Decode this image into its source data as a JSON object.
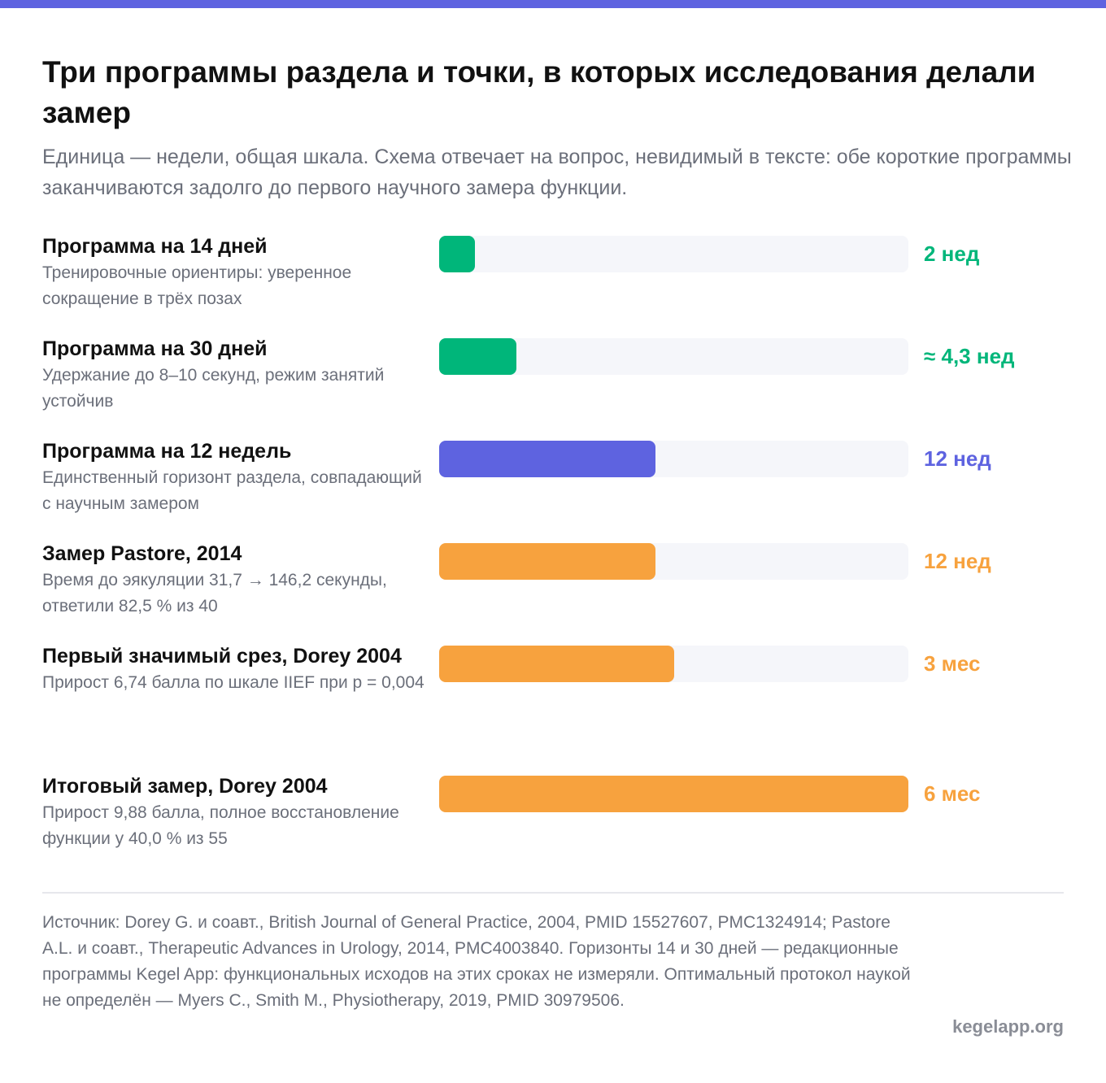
{
  "title": "Три программы раздела и точки, в которых исследования делали замер",
  "subtitle": "Единица — недели, общая шкала. Схема отвечает на вопрос, невидимый в тексте: обе короткие программы заканчиваются задолго до первого научного замера функции.",
  "colors": {
    "green": "#00b67a",
    "indigo": "#5e63e0",
    "orange": "#f7a23e",
    "track": "#f5f6fa"
  },
  "chart_data": {
    "type": "bar",
    "orientation": "horizontal",
    "unit": "weeks",
    "xlim": [
      0,
      26
    ],
    "grid": false,
    "categories": [
      "Программа на 14 дней",
      "Программа на 30 дней",
      "Программа на 12 недель",
      "Замер Pastore, 2014",
      "Первый значимый срез, Dorey 2004",
      "Итоговый замер, Dorey 2004"
    ],
    "descriptions": [
      "Тренировочные ориентиры: уверенное сокращение в трёх позах",
      "Удержание до 8–10 секунд, режим занятий устойчив",
      "Единственный горизонт раздела, совпадающий с научным замером",
      "Время до эякуляции 31,7 → 146,2 секунды, ответили 82,5 % из 40",
      "Прирост 6,74 балла по шкале IIEF при p = 0,004",
      "Прирост 9,88 балла, полное восстановление функции у 40,0 % из 55"
    ],
    "values": [
      2,
      4.3,
      12,
      12,
      13,
      26
    ],
    "value_labels": [
      "2 нед",
      "≈ 4,3 нед",
      "12 нед",
      "12 нед",
      "3 мес",
      "6 мес"
    ],
    "bar_colors": [
      "#00b67a",
      "#00b67a",
      "#5e63e0",
      "#f7a23e",
      "#f7a23e",
      "#f7a23e"
    ]
  },
  "footnote": "Источник: Dorey G. и соавт., British Journal of General Practice, 2004, PMID 15527607, PMC1324914; Pastore A.L. и соавт., Therapeutic Advances in Urology, 2014, PMC4003840. Горизонты 14 и 30 дней — редакционные программы Kegel App: функциональных исходов на этих сроках не измеряли. Оптимальный протокол наукой не определён — Myers C., Smith M., Physiotherapy, 2019, PMID 30979506.",
  "site": "kegelapp.org"
}
